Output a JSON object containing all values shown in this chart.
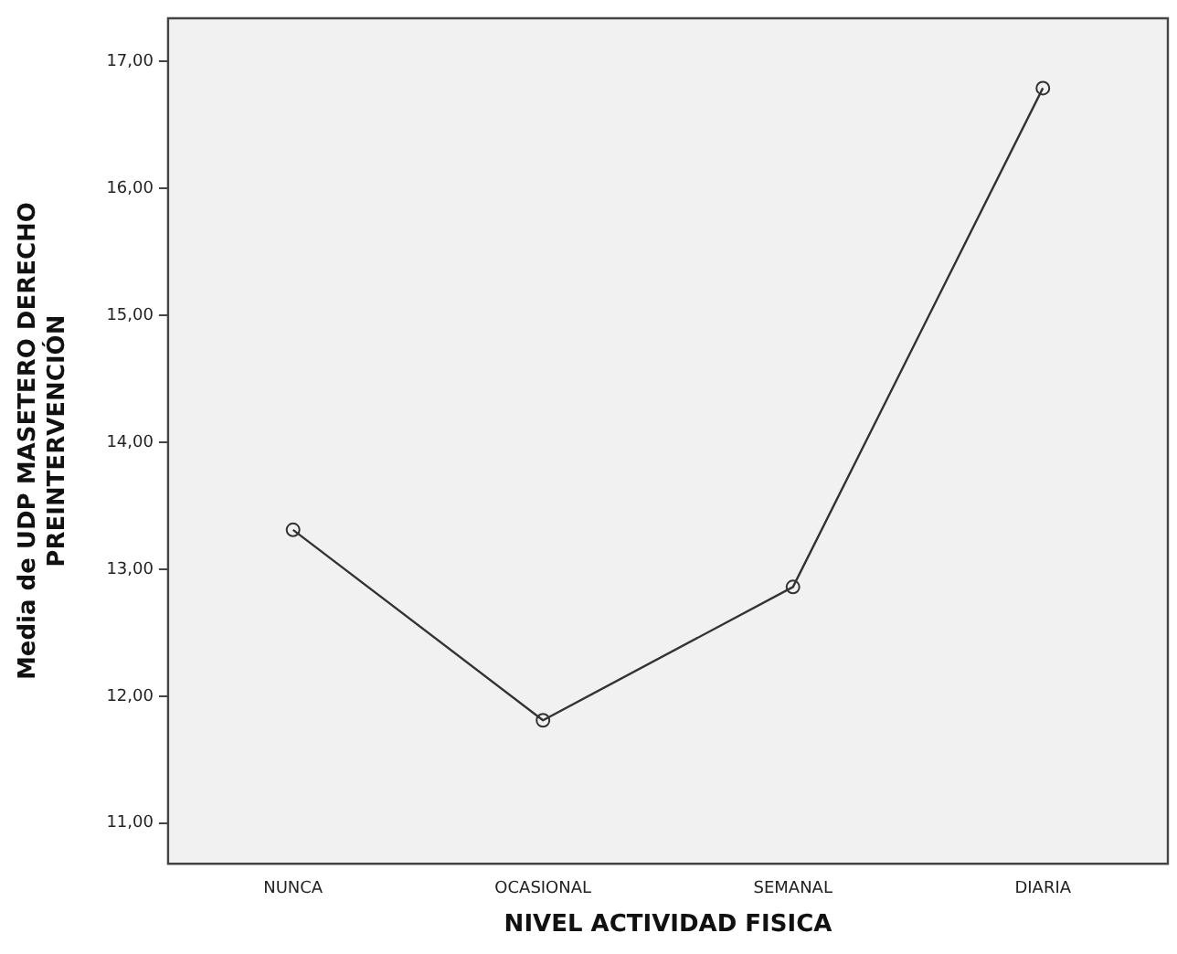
{
  "chart_data": {
    "type": "line",
    "xlabel": "NIVEL ACTIVIDAD FISICA",
    "ylabel": "Media de UDP MASETERO DERECHO\nPREINTERVENCIÓN",
    "categories": [
      "NUNCA",
      "OCASIONAL",
      "SEMANAL",
      "DIARIA"
    ],
    "values": [
      13.31,
      11.81,
      12.86,
      16.79
    ],
    "color": "#333333",
    "ylim": [
      10.68,
      17.34
    ],
    "yticks": [
      {
        "value": 11,
        "label": "11,00"
      },
      {
        "value": 12,
        "label": "12,00"
      },
      {
        "value": 13,
        "label": "13,00"
      },
      {
        "value": 14,
        "label": "14,00"
      },
      {
        "value": 15,
        "label": "15,00"
      },
      {
        "value": 16,
        "label": "16,00"
      },
      {
        "value": 17,
        "label": "17,00"
      }
    ],
    "grid": false,
    "legend": false,
    "marker": "circle",
    "line_style": "solid"
  }
}
